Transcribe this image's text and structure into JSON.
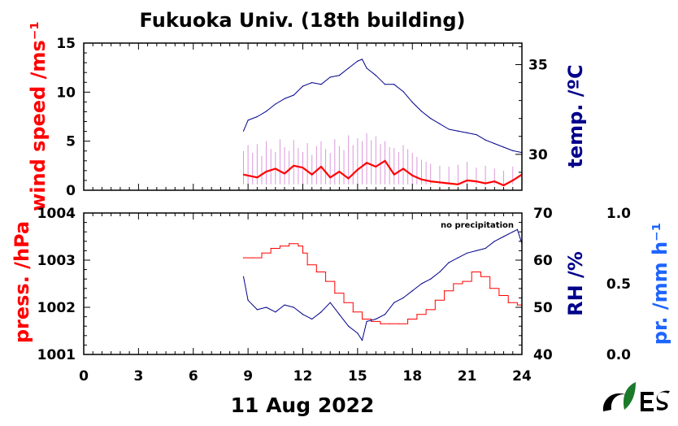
{
  "title": "Fukuoka Univ. (18th building)",
  "date_label": "11 Aug 2022",
  "colors": {
    "wind": "#ff0000",
    "wind_gust": "#d27fd2",
    "temperature": "#00008b",
    "pressure": "#ff0000",
    "rh": "#00008b",
    "precip": "#1e64ff",
    "axis": "#000000"
  },
  "chart_data": [
    {
      "type": "line",
      "panel": "top",
      "x_ticks": [
        "0",
        "3",
        "6",
        "9",
        "12",
        "15",
        "18",
        "21",
        "24"
      ],
      "xlim": [
        0,
        24
      ],
      "left_axis": {
        "label": "wind speed /ms⁻¹",
        "ylim": [
          0,
          15
        ],
        "ticks": [
          "0",
          "5",
          "10",
          "15"
        ]
      },
      "right_axis": {
        "label": "temp. /ºC",
        "ylim": [
          28,
          36.2
        ],
        "ticks": [
          "30",
          "35"
        ]
      },
      "series": [
        {
          "axis": "left",
          "style": "thin-band",
          "x": [
            8.75,
            9,
            9.25,
            9.5,
            9.75,
            10,
            10.25,
            10.5,
            10.75,
            11,
            11.25,
            11.5,
            11.75,
            12,
            12.25,
            12.5,
            12.75,
            13,
            13.25,
            13.5,
            13.75,
            14,
            14.25,
            14.5,
            14.75,
            15,
            15.25,
            15.5,
            15.75,
            16,
            16.25,
            16.5,
            16.75,
            17,
            17.25,
            17.5,
            17.75,
            18,
            18.25,
            18.5,
            18.75,
            19,
            19.5,
            20,
            20.5,
            21,
            21.5,
            22,
            22.5,
            23,
            23.5,
            24
          ],
          "y": [
            4.0,
            4.6,
            3.8,
            4.7,
            3.5,
            5.0,
            4.2,
            3.9,
            5.2,
            4.4,
            4.0,
            5.1,
            4.3,
            3.9,
            4.8,
            3.6,
            4.5,
            5.0,
            4.2,
            3.8,
            5.2,
            4.5,
            4.1,
            5.6,
            4.6,
            5.3,
            5.0,
            5.8,
            5.1,
            5.5,
            4.7,
            5.0,
            4.4,
            4.3,
            3.9,
            4.6,
            4.2,
            3.8,
            3.4,
            3.1,
            2.9,
            2.7,
            2.5,
            2.4,
            2.6,
            2.9,
            2.3,
            2.5,
            2.2,
            2.0,
            2.4,
            3.4
          ]
        },
        {
          "axis": "left",
          "style": "thick",
          "x": [
            8.75,
            9,
            9.5,
            10,
            10.5,
            11,
            11.5,
            12,
            12.5,
            13,
            13.5,
            14,
            14.5,
            15,
            15.5,
            16,
            16.5,
            17,
            17.5,
            18,
            18.5,
            19,
            19.5,
            20,
            20.5,
            21,
            21.5,
            22,
            22.5,
            23,
            23.5,
            24
          ],
          "y": [
            1.6,
            1.5,
            1.3,
            1.9,
            2.2,
            1.7,
            2.5,
            2.3,
            1.6,
            2.4,
            1.3,
            1.9,
            1.2,
            2.1,
            2.8,
            2.4,
            3.0,
            1.6,
            2.2,
            1.5,
            1.1,
            0.9,
            0.8,
            0.7,
            0.6,
            1.0,
            0.9,
            0.7,
            0.9,
            0.5,
            1.0,
            1.6
          ]
        },
        {
          "axis": "right",
          "style": "thin",
          "x": [
            8.75,
            9,
            9.5,
            10,
            10.5,
            11,
            11.5,
            12,
            12.5,
            13,
            13.5,
            14,
            14.5,
            15,
            15.25,
            15.5,
            16,
            16.5,
            17,
            17.5,
            18,
            18.5,
            19,
            19.5,
            20,
            20.5,
            21,
            21.5,
            22,
            22.5,
            23,
            23.5,
            24
          ],
          "y": [
            31.3,
            31.9,
            32.1,
            32.4,
            32.8,
            33.1,
            33.3,
            33.8,
            34.0,
            33.9,
            34.3,
            34.4,
            34.8,
            35.2,
            35.3,
            34.8,
            34.4,
            33.9,
            33.9,
            33.5,
            32.9,
            32.4,
            32.0,
            31.7,
            31.4,
            31.3,
            31.2,
            31.1,
            30.8,
            30.6,
            30.4,
            30.2,
            30.1
          ]
        }
      ]
    },
    {
      "type": "line",
      "panel": "bottom",
      "x_ticks": [
        "0",
        "3",
        "6",
        "9",
        "12",
        "15",
        "18",
        "21",
        "24"
      ],
      "xlim": [
        0,
        24
      ],
      "left_axis": {
        "label": "press. /hPa",
        "ylim": [
          1001,
          1004
        ],
        "ticks": [
          "1001",
          "1002",
          "1003",
          "1004"
        ]
      },
      "right_axis": {
        "label": "RH /%",
        "ylim": [
          40,
          70
        ],
        "ticks": [
          "40",
          "50",
          "60",
          "70"
        ]
      },
      "far_right_axis": {
        "label": "pr. /mm h⁻¹",
        "ylim": [
          0,
          1
        ],
        "ticks": [
          "0.0",
          "0.5",
          "1.0"
        ]
      },
      "annotation": "no precipitation",
      "series": [
        {
          "axis": "left",
          "style": "step",
          "x": [
            8.75,
            9.25,
            9.75,
            10.25,
            10.75,
            11.25,
            11.75,
            12.0,
            12.25,
            12.75,
            13.25,
            13.75,
            14.25,
            14.75,
            15.25,
            15.75,
            16.25,
            16.75,
            17.25,
            17.75,
            18.25,
            18.75,
            19.25,
            19.75,
            20.25,
            20.75,
            21.25,
            21.75,
            22.25,
            22.75,
            23.25,
            23.75,
            24
          ],
          "y": [
            1003.05,
            1003.05,
            1003.15,
            1003.25,
            1003.3,
            1003.35,
            1003.3,
            1003.15,
            1002.9,
            1002.75,
            1002.55,
            1002.3,
            1002.1,
            1001.9,
            1001.75,
            1001.7,
            1001.65,
            1001.65,
            1001.65,
            1001.75,
            1001.85,
            1001.95,
            1002.15,
            1002.35,
            1002.5,
            1002.55,
            1002.75,
            1002.65,
            1002.4,
            1002.25,
            1002.1,
            1002.05,
            1002.0
          ]
        },
        {
          "axis": "right",
          "style": "thin",
          "x": [
            8.75,
            9,
            9.5,
            10,
            10.5,
            11,
            11.5,
            12,
            12.5,
            13,
            13.5,
            14,
            14.5,
            15,
            15.25,
            15.5,
            16,
            16.5,
            17,
            17.5,
            18,
            18.5,
            19,
            19.5,
            20,
            20.5,
            21,
            21.5,
            22,
            22.5,
            23,
            23.5,
            23.75,
            24
          ],
          "y": [
            56.5,
            51.5,
            49.5,
            50.0,
            49.0,
            50.5,
            50.0,
            48.5,
            47.5,
            49.0,
            51.0,
            48.5,
            46.0,
            44.5,
            43.0,
            47.0,
            47.5,
            48.5,
            51.0,
            52.0,
            53.5,
            55.0,
            56.0,
            57.5,
            59.5,
            60.5,
            61.5,
            62.0,
            62.5,
            64.0,
            65.0,
            66.0,
            66.5,
            63.5
          ]
        }
      ]
    }
  ]
}
